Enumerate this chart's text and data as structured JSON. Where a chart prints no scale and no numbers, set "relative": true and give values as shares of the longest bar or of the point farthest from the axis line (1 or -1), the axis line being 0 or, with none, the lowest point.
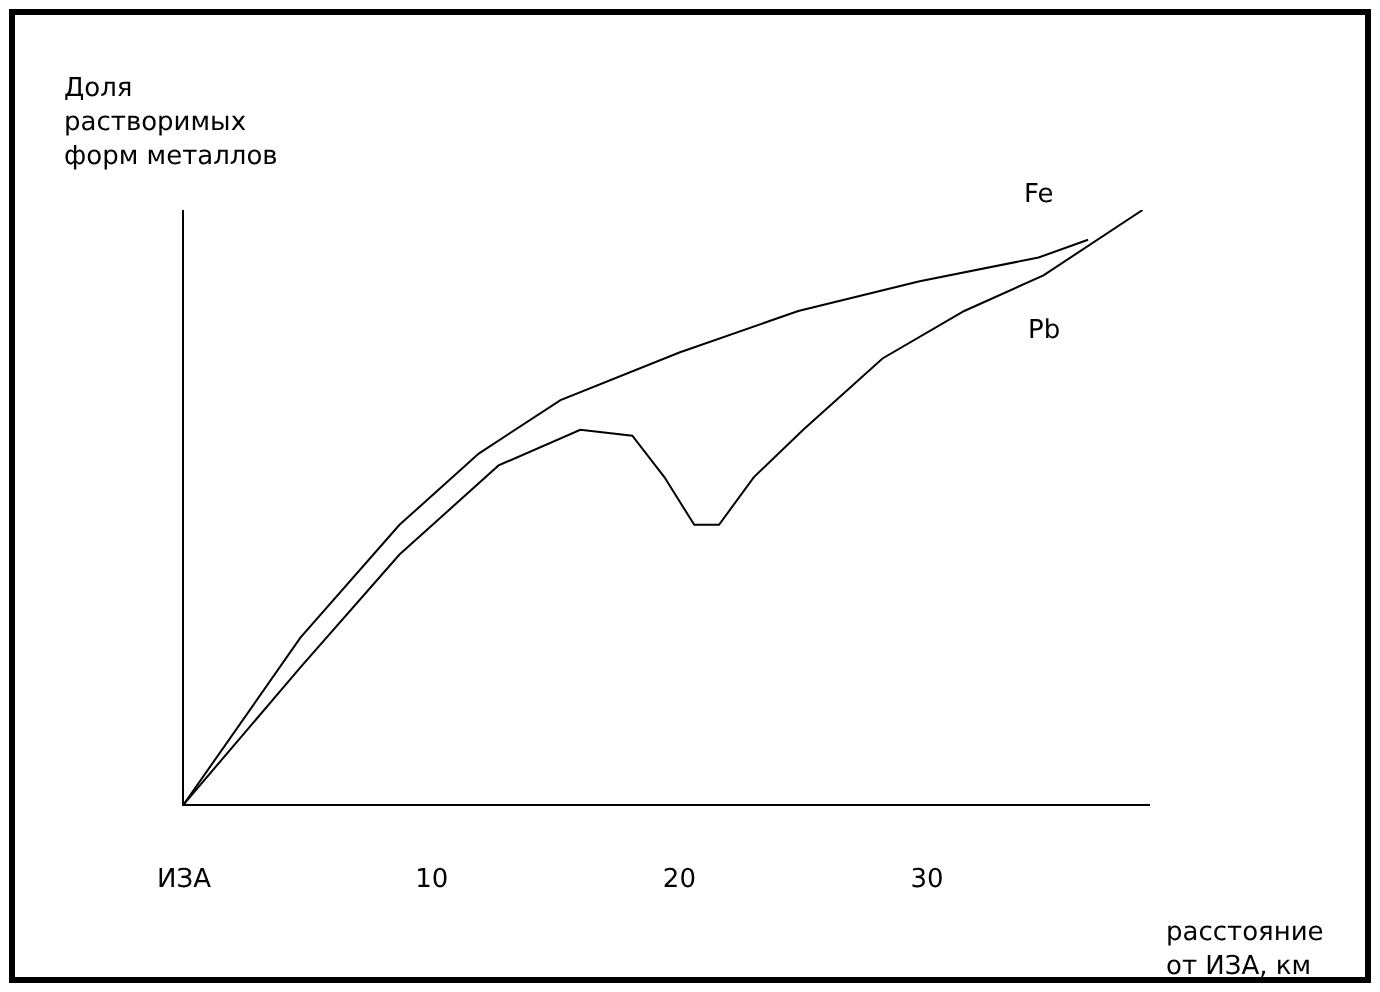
{
  "chart_data": {
    "type": "line",
    "relative": true,
    "ylabel": "Доля\nрастворимых\nформ металлов",
    "xlabel": "расстояние\nот ИЗА, км",
    "xlim": [
      0,
      39
    ],
    "xticks": [
      {
        "value": 0,
        "label": "ИЗА"
      },
      10,
      20,
      30
    ],
    "legend": false,
    "marker": "none",
    "line_style": "solid",
    "series": [
      {
        "name": "Fe",
        "color": "#000000",
        "x": [
          0,
          4.7,
          8.7,
          11.9,
          15.2,
          20.0,
          24.8,
          29.7,
          34.5,
          36.5
        ],
        "values": [
          0,
          0.28,
          0.47,
          0.59,
          0.68,
          0.76,
          0.83,
          0.88,
          0.92,
          0.95
        ]
      },
      {
        "name": "Pb",
        "color": "#000000",
        "x": [
          0,
          4.7,
          8.7,
          12.7,
          16.0,
          18.1,
          19.4,
          20.6,
          21.6,
          23.0,
          25.0,
          28.2,
          31.5,
          34.7,
          38.7
        ],
        "values": [
          0,
          0.23,
          0.42,
          0.57,
          0.63,
          0.62,
          0.55,
          0.47,
          0.47,
          0.55,
          0.63,
          0.75,
          0.83,
          0.89,
          1.0
        ]
      }
    ]
  }
}
